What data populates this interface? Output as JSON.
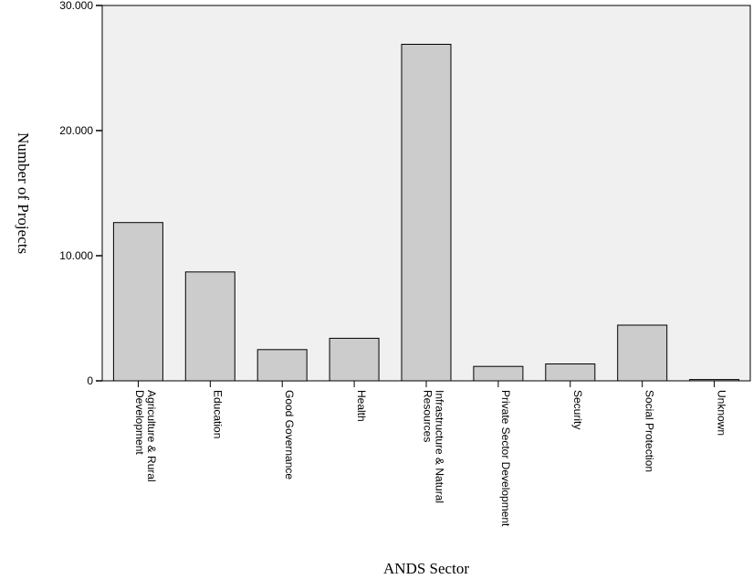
{
  "chart_data": {
    "type": "bar",
    "title": "",
    "xlabel": "ANDS Sector",
    "ylabel": "Number of Projects",
    "categories": [
      [
        "Agriculture & Rural",
        "Development"
      ],
      [
        "Education"
      ],
      [
        "Good Governance"
      ],
      [
        "Health"
      ],
      [
        "Infrastructure & Natural",
        "Resources"
      ],
      [
        "Private Sector Development"
      ],
      [
        "Security"
      ],
      [
        "Social Protection"
      ],
      [
        "Unknown"
      ]
    ],
    "values": [
      12650,
      8700,
      2500,
      3400,
      26900,
      1150,
      1350,
      4450,
      100
    ],
    "ylim": [
      0,
      30000
    ],
    "yticks": [
      {
        "value": 0,
        "label": "0"
      },
      {
        "value": 10000,
        "label": "10.000"
      },
      {
        "value": 20000,
        "label": "20.000"
      },
      {
        "value": 30000,
        "label": "30.000"
      }
    ],
    "grid": false,
    "legend": "none",
    "colors": {
      "plot_background": "#f0f0f0",
      "bar_fill": "#cccccc",
      "bar_stroke": "#000000"
    }
  }
}
